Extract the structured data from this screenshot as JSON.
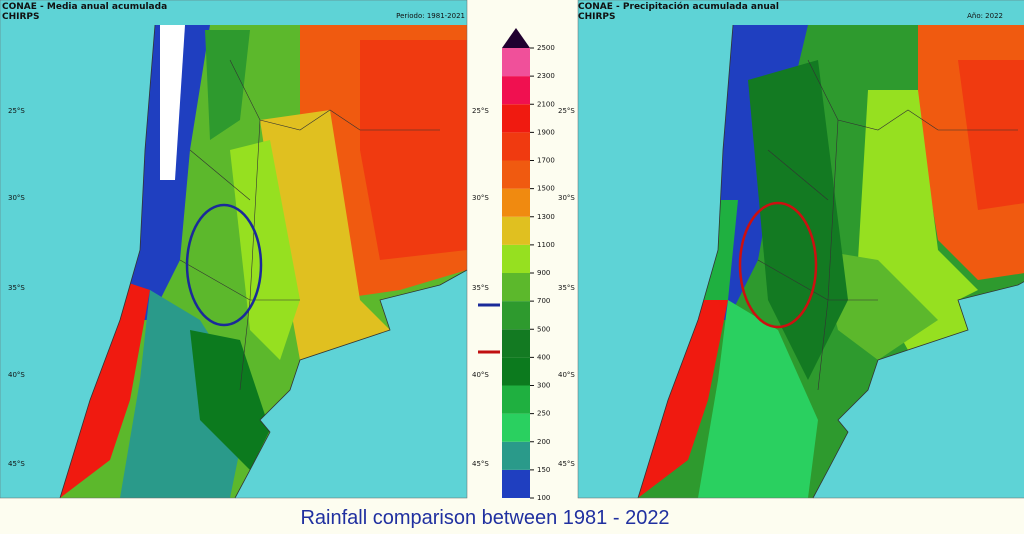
{
  "maps": [
    {
      "title": "CONAE - Media anual acumulada",
      "source": "CHIRPS",
      "period": "Periodo: 1981-2021"
    },
    {
      "title": "CONAE - Precipitación acumulada  anual",
      "source": "CHIRPS",
      "period": "Año: 2022"
    }
  ],
  "lat_labels": [
    "25°S",
    "30°S",
    "35°S",
    "40°S",
    "45°S"
  ],
  "colorbar": {
    "ticks": [
      100,
      150,
      200,
      250,
      300,
      400,
      500,
      700,
      900,
      1100,
      1300,
      1500,
      1700,
      1900,
      2100,
      2300,
      2500
    ],
    "colors": [
      "#1f3fc0",
      "#2a9a8a",
      "#2ad060",
      "#1fb040",
      "#0c7a1e",
      "#137a22",
      "#2e9a2e",
      "#5cb82c",
      "#96e020",
      "#e0c020",
      "#f08a10",
      "#f05a10",
      "#f03a10",
      "#f01a10",
      "#f01050",
      "#f0509a",
      "#5a0040"
    ]
  },
  "caption": "Rainfall comparison between 1981 - 2022"
}
